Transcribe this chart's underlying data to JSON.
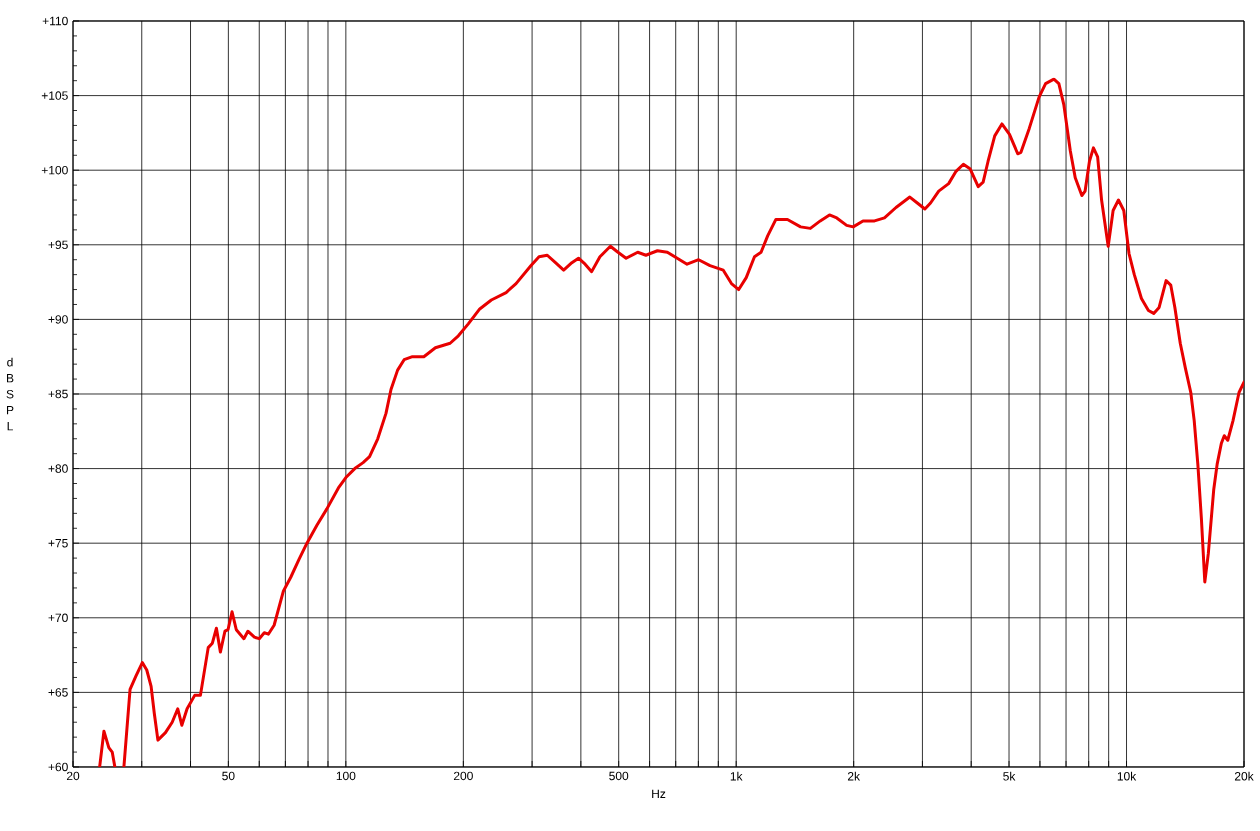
{
  "chart_data": {
    "type": "line",
    "xlabel": "Hz",
    "ylabel": "dB SPL",
    "log": "x",
    "grid": true,
    "xlim": [
      20,
      20000
    ],
    "ylim": [
      60,
      110
    ],
    "xticks": [
      20,
      {
        "value": 30,
        "label": null
      },
      {
        "value": 40,
        "label": null
      },
      50,
      {
        "value": 60,
        "label": null
      },
      {
        "value": 70,
        "label": null
      },
      {
        "value": 80,
        "label": null
      },
      {
        "value": 90,
        "label": null
      },
      100,
      200,
      {
        "value": 300,
        "label": null
      },
      {
        "value": 400,
        "label": null
      },
      500,
      {
        "value": 600,
        "label": null
      },
      {
        "value": 700,
        "label": null
      },
      {
        "value": 800,
        "label": null
      },
      {
        "value": 900,
        "label": null
      },
      {
        "value": 1000,
        "label": "1k"
      },
      {
        "value": 2000,
        "label": "2k"
      },
      {
        "value": 3000,
        "label": null
      },
      {
        "value": 4000,
        "label": null
      },
      {
        "value": 5000,
        "label": "5k"
      },
      {
        "value": 6000,
        "label": null
      },
      {
        "value": 7000,
        "label": null
      },
      {
        "value": 8000,
        "label": null
      },
      {
        "value": 9000,
        "label": null
      },
      {
        "value": 10000,
        "label": "10k"
      },
      {
        "value": 20000,
        "label": "20k"
      }
    ],
    "yticks": [
      {
        "value": 60,
        "label": "+60"
      },
      {
        "value": 65,
        "label": "+65"
      },
      {
        "value": 70,
        "label": "+70"
      },
      {
        "value": 75,
        "label": "+75"
      },
      {
        "value": 80,
        "label": "+80"
      },
      {
        "value": 85,
        "label": "+85"
      },
      {
        "value": 90,
        "label": "+90"
      },
      {
        "value": 95,
        "label": "+95"
      },
      {
        "value": 100,
        "label": "+100"
      },
      {
        "value": 105,
        "label": "+105"
      },
      {
        "value": 110,
        "label": "+110"
      }
    ],
    "x": [
      23.4,
      24.0,
      24.7,
      25.2,
      25.6,
      26.3,
      27.0,
      28.0,
      29.0,
      30.1,
      30.9,
      31.7,
      32.3,
      33.0,
      34.5,
      35.9,
      37.1,
      38.0,
      39.2,
      41.0,
      42.4,
      44.4,
      45.5,
      46.6,
      47.7,
      49.0,
      49.9,
      51.1,
      52.4,
      54.8,
      56.1,
      58.3,
      60.0,
      61.8,
      63.3,
      65.5,
      69.2,
      72.2,
      75.8,
      79.5,
      84.3,
      89.4,
      95.7,
      100,
      105.4,
      110.7,
      115,
      120.7,
      126.7,
      130.5,
      135.7,
      141,
      148.1,
      158.4,
      169.6,
      185,
      194.2,
      205.9,
      220.3,
      235.9,
      257.4,
      272.9,
      297.8,
      312.5,
      328.1,
      344.4,
      361.4,
      379.3,
      394.5,
      410.2,
      426.3,
      447.6,
      476.1,
      497.8,
      522.4,
      559.4,
      587.1,
      628.4,
      666.2,
      706.2,
      748.5,
      801.3,
      857,
      926.7,
      972.5,
      1015,
      1061,
      1114,
      1158,
      1204,
      1264,
      1353,
      1462,
      1549,
      1642,
      1734,
      1810,
      1919,
      1994,
      2113,
      2262,
      2398,
      2567,
      2785,
      2911,
      3044,
      3147,
      3303,
      3502,
      3652,
      3820,
      3972,
      4169,
      4292,
      4419,
      4596,
      4795,
      5014,
      5263,
      5364,
      5634,
      5970,
      6204,
      6516,
      6709,
      6908,
      7177,
      7390,
      7684,
      7833,
      8036,
      8226,
      8433,
      8632,
      8975,
      9240,
      9535,
      9840,
      10150,
      10470,
      10920,
      11380,
      11740,
      12120,
      12630,
      12980,
      13300,
      13730,
      14160,
      14610,
      14910,
      15230,
      15550,
      15870,
      16200,
      16730,
      17070,
      17500,
      17800,
      18170,
      18740,
      19420,
      20000
    ],
    "series": [
      {
        "color": "#e80000",
        "values": [
          60,
          62.4,
          61.3,
          61.0,
          60,
          null,
          60,
          65.2,
          66.1,
          67.0,
          66.5,
          65.4,
          63.6,
          61.8,
          62.3,
          63.0,
          63.9,
          62.8,
          63.9,
          64.8,
          64.8,
          68.0,
          68.3,
          69.3,
          67.7,
          69.1,
          69.2,
          70.4,
          69.2,
          68.6,
          69.1,
          68.7,
          68.6,
          69.0,
          68.9,
          69.5,
          71.8,
          72.7,
          73.9,
          75.0,
          76.2,
          77.3,
          78.7,
          79.4,
          80.0,
          80.4,
          80.8,
          82.0,
          83.7,
          85.3,
          86.6,
          87.3,
          87.5,
          87.5,
          88.1,
          88.4,
          88.9,
          89.7,
          90.7,
          91.3,
          91.8,
          92.4,
          93.6,
          94.2,
          94.3,
          93.8,
          93.3,
          93.8,
          94.1,
          93.7,
          93.2,
          94.2,
          94.9,
          94.5,
          94.1,
          94.5,
          94.3,
          94.6,
          94.5,
          94.1,
          93.7,
          94.0,
          93.6,
          93.3,
          92.4,
          92.0,
          92.8,
          94.2,
          94.5,
          95.6,
          96.7,
          96.7,
          96.2,
          96.1,
          96.6,
          97.0,
          96.8,
          96.3,
          96.2,
          96.6,
          96.6,
          96.8,
          97.5,
          98.2,
          97.8,
          97.4,
          97.8,
          98.6,
          99.1,
          99.9,
          100.4,
          100.1,
          98.9,
          99.2,
          100.6,
          102.3,
          103.1,
          102.4,
          101.1,
          101.2,
          102.8,
          104.9,
          105.8,
          106.1,
          105.8,
          104.4,
          101.3,
          99.5,
          98.3,
          98.6,
          100.6,
          101.5,
          100.9,
          98.0,
          94.9,
          97.3,
          98.0,
          97.3,
          94.4,
          93.0,
          91.4,
          90.6,
          90.4,
          90.8,
          92.6,
          92.3,
          90.8,
          88.4,
          86.7,
          85.1,
          83.2,
          80.3,
          76.7,
          72.4,
          74.3,
          78.6,
          80.3,
          81.7,
          82.2,
          81.9,
          83.2,
          85.1,
          85.8
        ]
      }
    ]
  }
}
